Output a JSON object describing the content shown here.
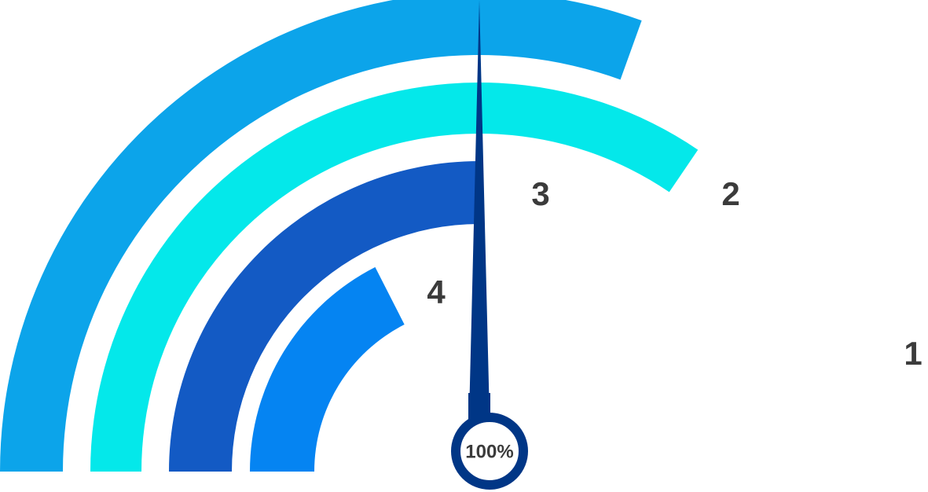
{
  "chart_data": {
    "type": "gauge",
    "title": "",
    "center_value_label": "100%",
    "needle_value": 0.5,
    "series": [
      {
        "label": "1",
        "sweep_fraction": 0.61,
        "color": "#0ca4ea"
      },
      {
        "label": "2",
        "sweep_fraction": 0.69,
        "color": "#04e8ea"
      },
      {
        "label": "3",
        "sweep_fraction": 0.5,
        "color": "#135ac4"
      },
      {
        "label": "4",
        "sweep_fraction": 0.35,
        "color": "#0584f2"
      }
    ]
  },
  "colors": {
    "needle": "#003686",
    "hub_ring": "#003686",
    "hub_fill": "#ffffff",
    "label_text": "#3b3b3b"
  }
}
